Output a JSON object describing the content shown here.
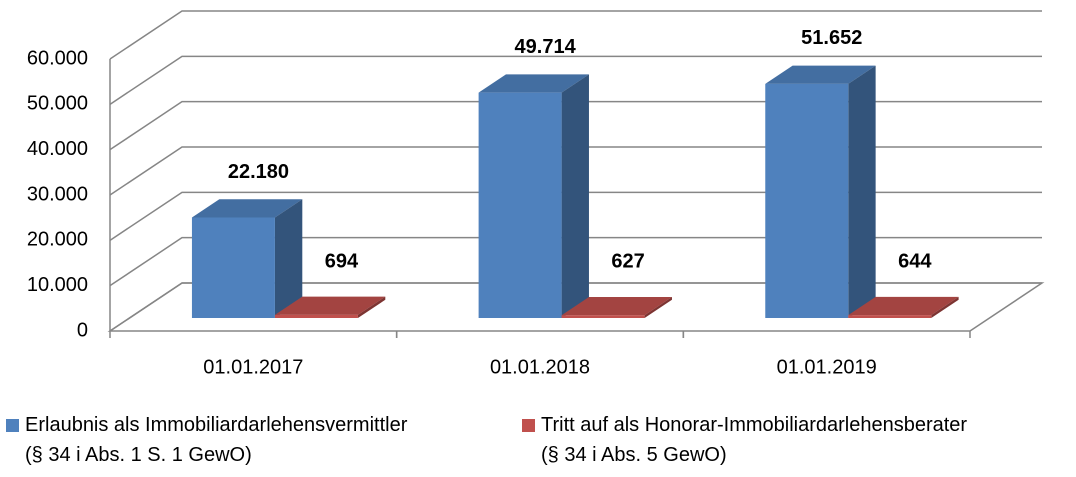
{
  "chart_data": {
    "type": "bar3d",
    "categories": [
      "01.01.2017",
      "01.01.2018",
      "01.01.2019"
    ],
    "series": [
      {
        "name": "Erlaubnis als Immobiliardarlehensvermittler\n(§ 34 i Abs. 1 S. 1 GewO)",
        "color": "#4f81bd",
        "values": [
          22180,
          49714,
          51652
        ],
        "value_labels": [
          "22.180",
          "49.714",
          "51.652"
        ]
      },
      {
        "name": "Tritt auf als Honorar-Immobiliardarlehensberater\n(§ 34 i Abs. 5 GewO)",
        "color": "#c0504d",
        "values": [
          694,
          627,
          644
        ],
        "value_labels": [
          "694",
          "627",
          "644"
        ]
      }
    ],
    "ylim": [
      0,
      60000
    ],
    "yticks": [
      {
        "value": 0,
        "label": "0"
      },
      {
        "value": 10000,
        "label": "10.000"
      },
      {
        "value": 20000,
        "label": "20.000"
      },
      {
        "value": 30000,
        "label": "30.000"
      },
      {
        "value": 40000,
        "label": "40.000"
      },
      {
        "value": 50000,
        "label": "50.000"
      },
      {
        "value": 60000,
        "label": "60.000"
      }
    ],
    "grid": true,
    "legend": "bottom"
  }
}
